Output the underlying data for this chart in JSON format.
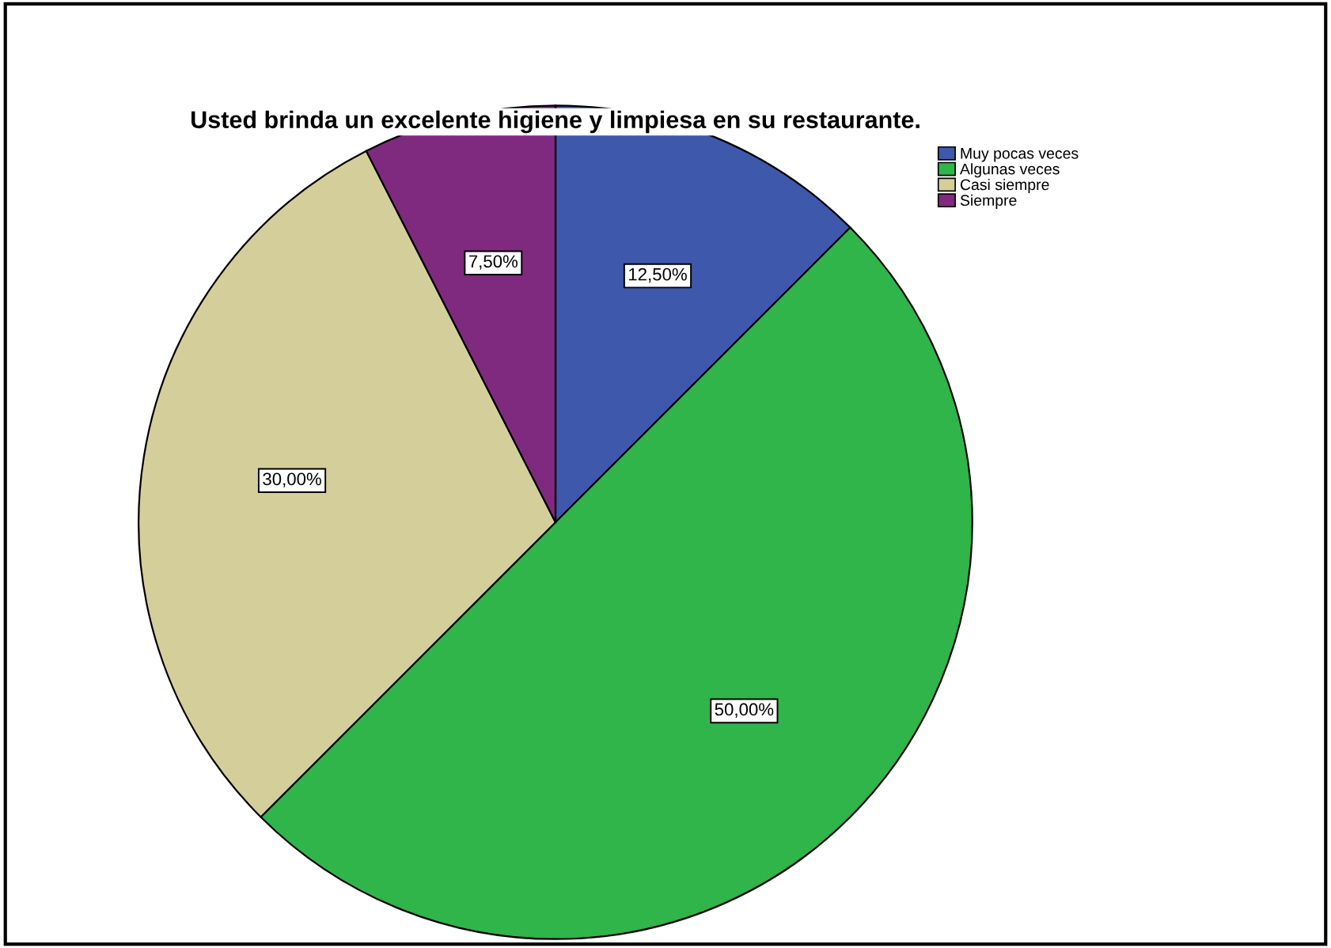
{
  "chart_data": {
    "type": "pie",
    "title": "Usted brinda un excelente higiene y limpiesa en su restaurante.",
    "categories": [
      "Muy pocas veces",
      "Algunas veces",
      "Casi siempre",
      "Siempre"
    ],
    "values": [
      12.5,
      50,
      30,
      7.5
    ],
    "colors": [
      "#3e58ac",
      "#2fb54a",
      "#d4cf9a",
      "#7f2a7f"
    ],
    "value_labels": [
      "12,50%",
      "50,00%",
      "30,00%",
      "7,50%"
    ],
    "legend": "top right"
  }
}
